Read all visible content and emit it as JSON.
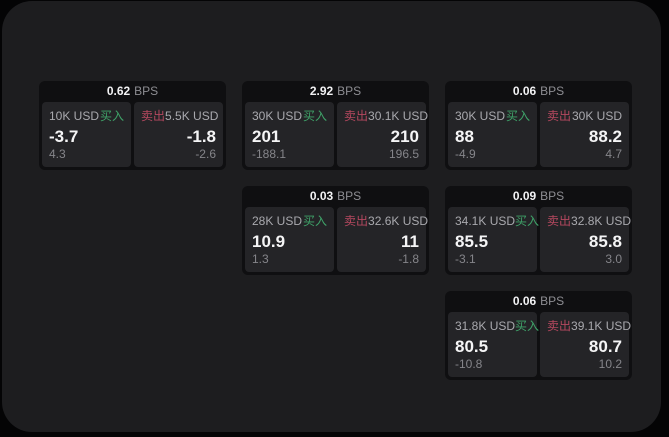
{
  "labels": {
    "bps": "BPS",
    "buy": "买入",
    "sell": "卖出"
  },
  "colors": {
    "buy_accent": "#3fa369",
    "sell_accent": "#b5485f",
    "value_text": "#f5f5f6",
    "panel_bg": "#1d1d1f",
    "card_bg": "#0f0f11",
    "side_bg": "#242427"
  },
  "cards": [
    {
      "bps": "0.62",
      "buy": {
        "amount": "10K USD",
        "value": "-3.7",
        "delta": "4.3"
      },
      "sell": {
        "amount": "5.5K USD",
        "value": "-1.8",
        "delta": "-2.6"
      }
    },
    {
      "bps": "2.92",
      "buy": {
        "amount": "30K USD",
        "value": "201",
        "delta": "-188.1"
      },
      "sell": {
        "amount": "30.1K USD",
        "value": "210",
        "delta": "196.5"
      }
    },
    {
      "bps": "0.06",
      "buy": {
        "amount": "30K USD",
        "value": "88",
        "delta": "-4.9"
      },
      "sell": {
        "amount": "30K USD",
        "value": "88.2",
        "delta": "4.7"
      }
    },
    {
      "bps": "0.03",
      "buy": {
        "amount": "28K USD",
        "value": "10.9",
        "delta": "1.3"
      },
      "sell": {
        "amount": "32.6K USD",
        "value": "11",
        "delta": "-1.8"
      }
    },
    {
      "bps": "0.09",
      "buy": {
        "amount": "34.1K USD",
        "value": "85.5",
        "delta": "-3.1"
      },
      "sell": {
        "amount": "32.8K USD",
        "value": "85.8",
        "delta": "3.0"
      }
    },
    {
      "bps": "0.06",
      "buy": {
        "amount": "31.8K USD",
        "value": "80.5",
        "delta": "-10.8"
      },
      "sell": {
        "amount": "39.1K USD",
        "value": "80.7",
        "delta": "10.2"
      }
    }
  ]
}
